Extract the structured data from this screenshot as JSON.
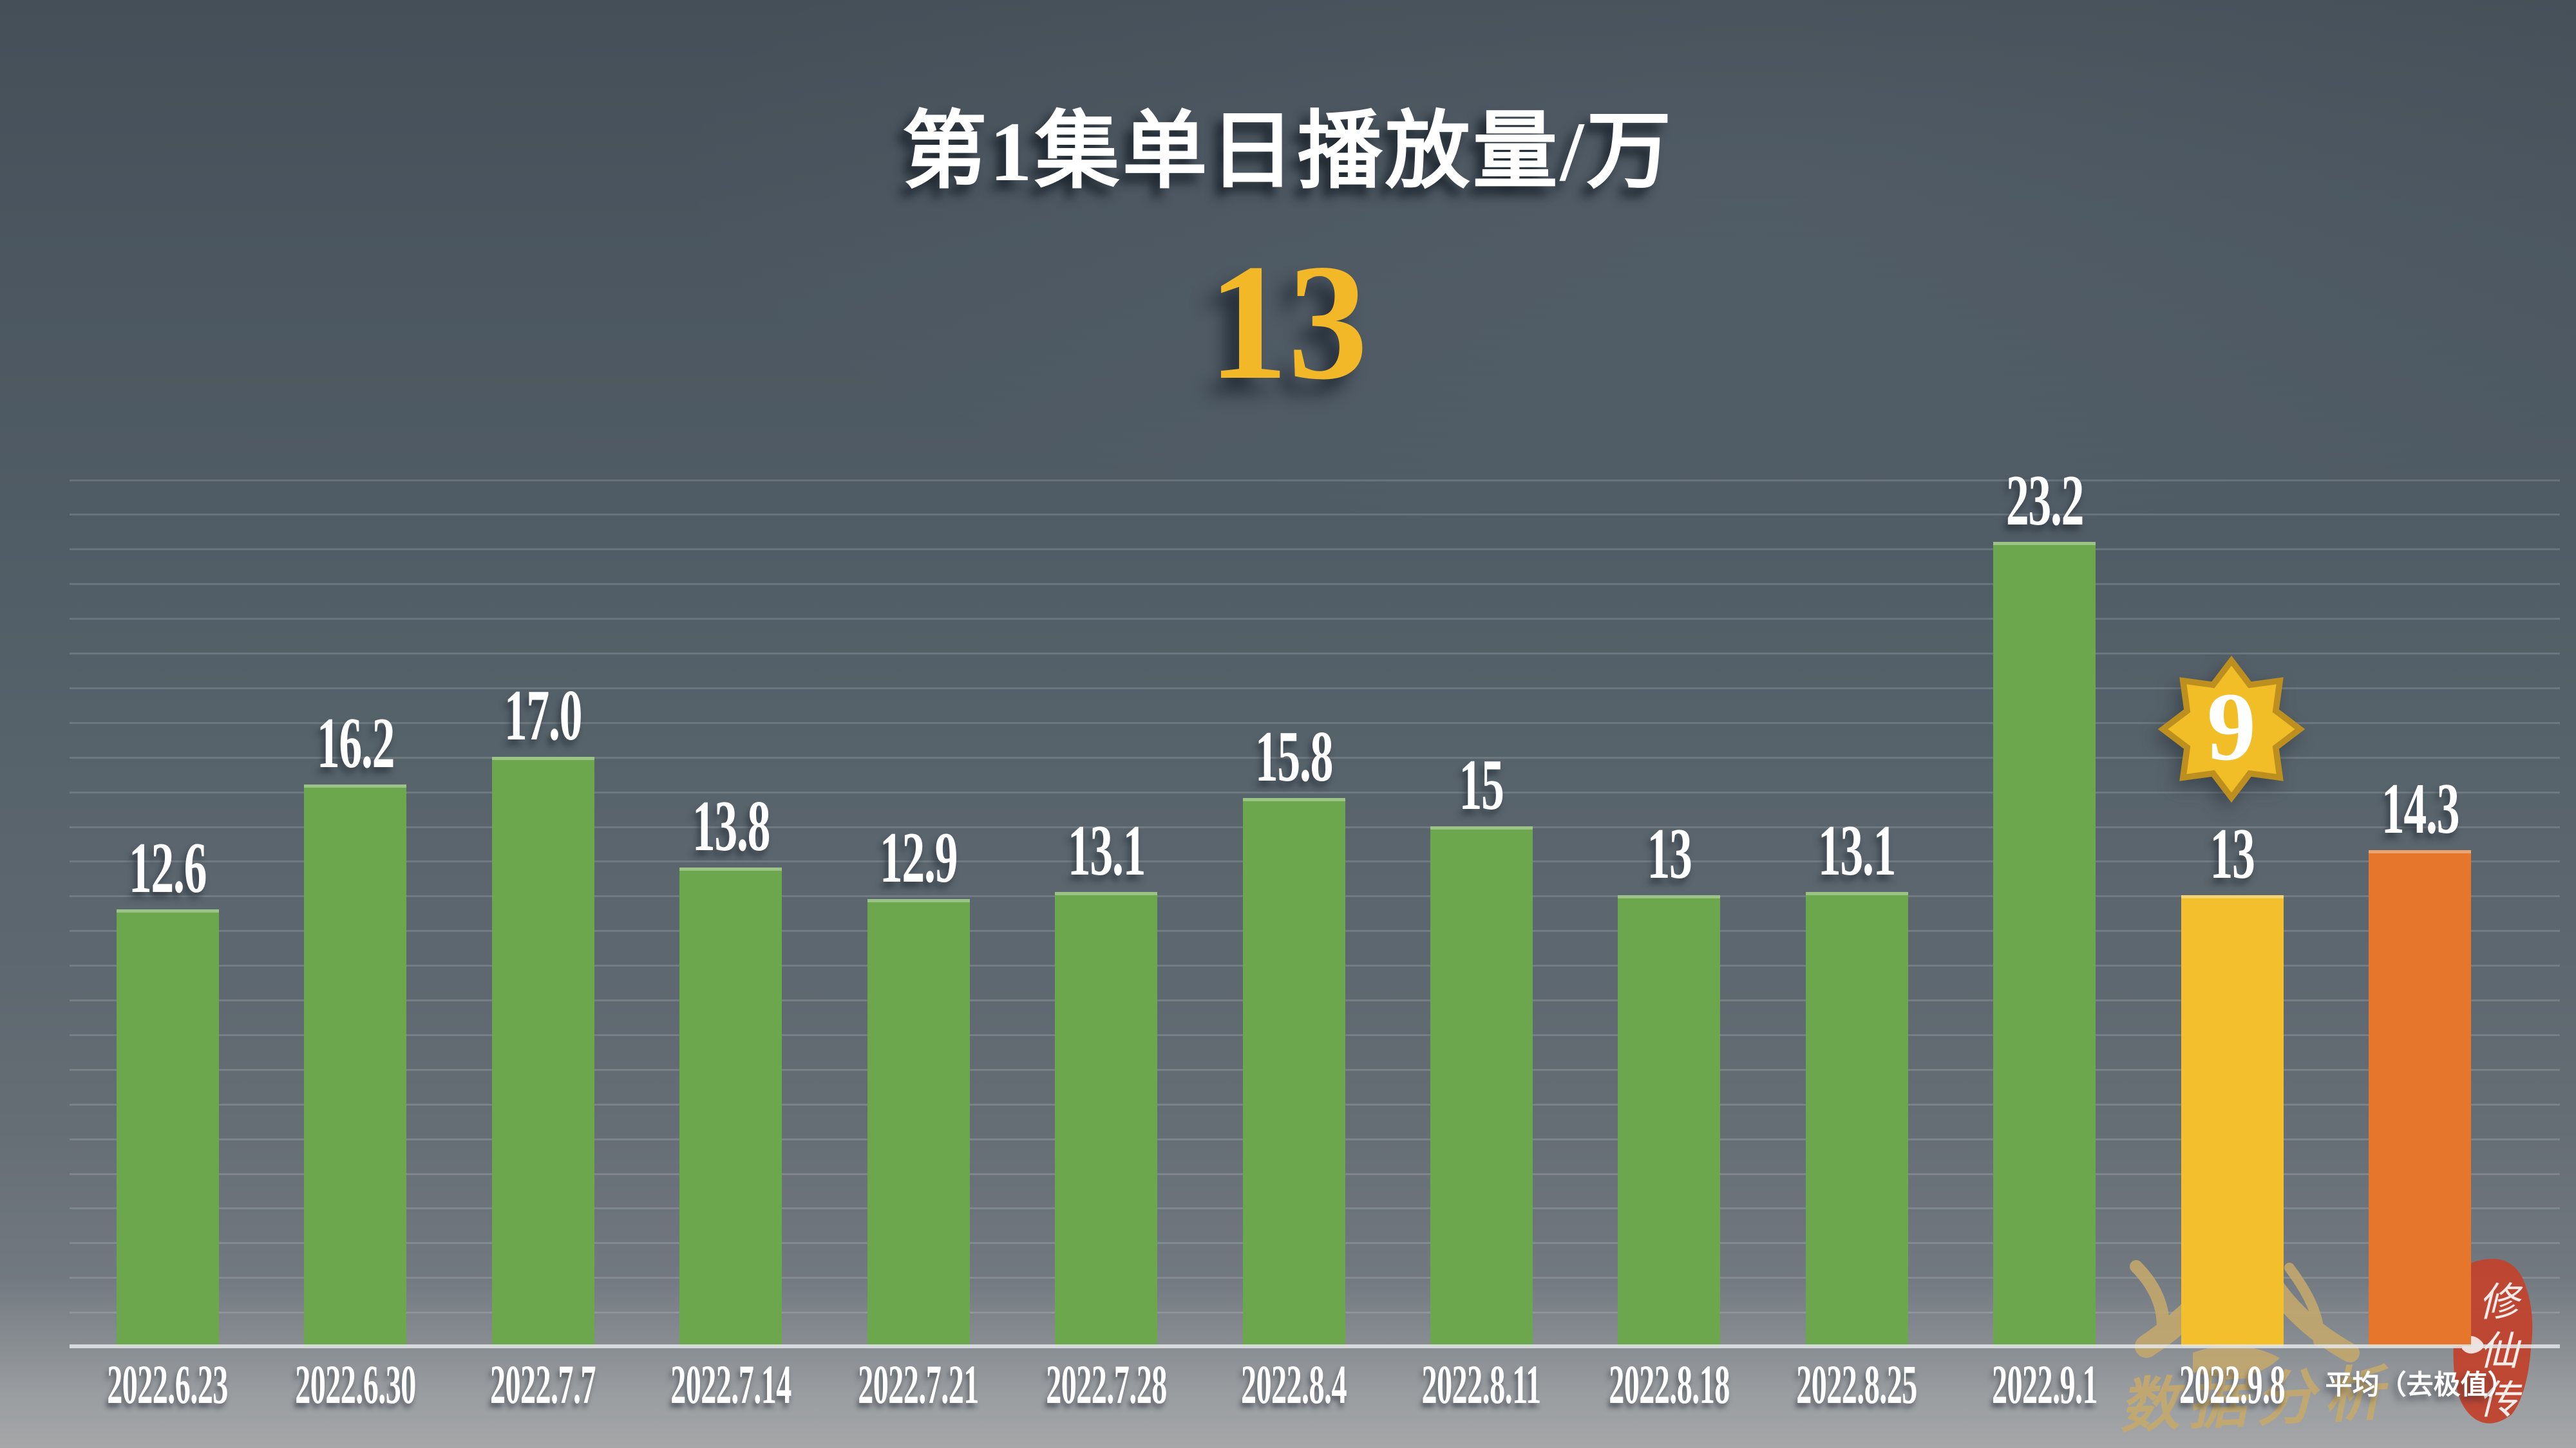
{
  "page": {
    "title": "第1集单日播放量/万",
    "highlight_value": "13"
  },
  "badge": {
    "value": "9"
  },
  "watermark": {
    "script": "数据分析",
    "seal": "修仙传"
  },
  "colors": {
    "bar_green": "#6ca74d",
    "bar_yellow": "#f4bf2c",
    "bar_orange": "#e6762c",
    "highlight_text": "#f2b827",
    "badge_fill": "#f2be27",
    "badge_border": "#bd8f1e",
    "seal_red": "#c14530",
    "watermark_gold": "#c4a96d",
    "label_text": "#ffffff"
  },
  "chart_data": {
    "type": "bar",
    "title": "第1集单日播放量/万",
    "unit": "万",
    "categories": [
      "2022.6.23",
      "2022.6.30",
      "2022.7.7",
      "2022.7.14",
      "2022.7.21",
      "2022.7.28",
      "2022.8.4",
      "2022.8.11",
      "2022.8.18",
      "2022.8.25",
      "2022.9.1",
      "2022.9.8",
      "平均（去极值）"
    ],
    "values": [
      12.6,
      16.2,
      17.0,
      13.8,
      12.9,
      13.1,
      15.8,
      15,
      13,
      13.1,
      23.2,
      13,
      14.3
    ],
    "value_labels": [
      "12.6",
      "16.2",
      "17.0",
      "13.8",
      "12.9",
      "13.1",
      "15.8",
      "15",
      "13",
      "13.1",
      "23.2",
      "13",
      "14.3"
    ],
    "series_colors": [
      "green",
      "green",
      "green",
      "green",
      "green",
      "green",
      "green",
      "green",
      "green",
      "green",
      "green",
      "yellow",
      "orange"
    ],
    "ylim": [
      0,
      25
    ],
    "gridline_step": 1,
    "grid": "on",
    "legend": "none",
    "annotations": [
      {
        "target": "2022.9.8",
        "badge_value": "9"
      }
    ]
  }
}
